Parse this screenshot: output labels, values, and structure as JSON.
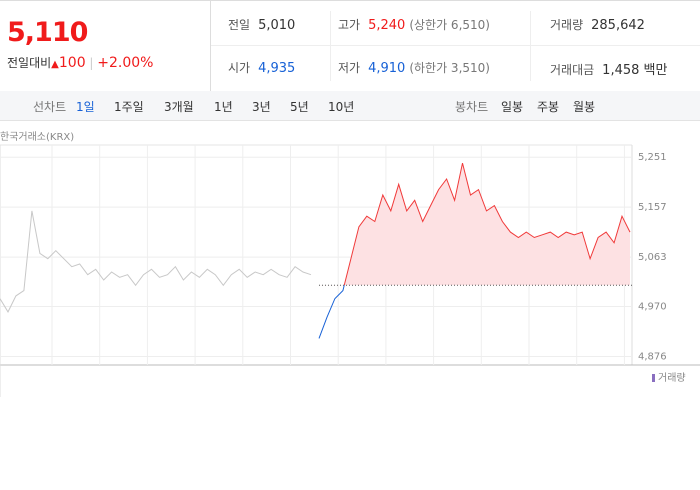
{
  "quote": {
    "price": "5,110",
    "change_label": "전일대비",
    "change": "100",
    "change_pct": "+2.00%",
    "items": [
      {
        "label": "전일",
        "value": "5,010"
      },
      {
        "label": "고가",
        "value": "5,240",
        "note": "(상한가 6,510)"
      },
      {
        "label": "거래량",
        "value": "285,642"
      },
      {
        "label": "시가",
        "value": "4,935"
      },
      {
        "label": "저가",
        "value": "4,910",
        "note": "(하한가 3,510)"
      },
      {
        "label": "거래대금",
        "value": "1,458 백만"
      }
    ]
  },
  "tabs": {
    "line_label": "선차트",
    "line": [
      "1일",
      "1주일",
      "3개월",
      "1년",
      "3년",
      "5년",
      "10년"
    ],
    "candle_label": "봉차트",
    "candle": [
      "일봉",
      "주봉",
      "월봉"
    ]
  },
  "chart_data": {
    "type": "line",
    "source": "한국거래소(KRX)",
    "volume_label": "거래량",
    "ylim": [
      4860,
      5274
    ],
    "yticks": [
      {
        "value": 4876,
        "label": "4,876"
      },
      {
        "value": 4970,
        "label": "4,970"
      },
      {
        "value": 5063,
        "label": "5,063"
      },
      {
        "value": 5157,
        "label": "5,157"
      },
      {
        "value": 5251,
        "label": "5,251"
      }
    ],
    "base": 5010,
    "up_color": "#f03a3a",
    "down_color": "#1761d6",
    "area_color": "#fde1e3",
    "grid": true,
    "series": [
      {
        "color": "#c8c8c8",
        "values": [
          4985,
          4960,
          4990,
          5000,
          5150,
          5070,
          5060,
          5075,
          5060,
          5045,
          5050,
          5030,
          5040,
          5020,
          5035,
          5025,
          5030,
          5010,
          5030,
          5040,
          5025,
          5030,
          5045,
          5020,
          5035,
          5025,
          5040,
          5030,
          5010,
          5030,
          5040,
          5025,
          5035,
          5030,
          5040,
          5030,
          5025,
          5045,
          5035,
          5030,
          null,
          null,
          null,
          null,
          null,
          null,
          null,
          null,
          null,
          null,
          null,
          null,
          null,
          null,
          null,
          null,
          null,
          null,
          null,
          null,
          null,
          null,
          null,
          null,
          null,
          null,
          null,
          null,
          null,
          null,
          null,
          null,
          null,
          null,
          null,
          null,
          null,
          null,
          null,
          null
        ]
      },
      {
        "color": "#f03a3a",
        "values": [
          null,
          null,
          null,
          null,
          null,
          null,
          null,
          null,
          null,
          null,
          null,
          null,
          null,
          null,
          null,
          null,
          null,
          null,
          null,
          null,
          null,
          null,
          null,
          null,
          null,
          null,
          null,
          null,
          null,
          null,
          null,
          null,
          null,
          null,
          null,
          null,
          null,
          null,
          null,
          null,
          4910,
          4950,
          4985,
          5000,
          5060,
          5120,
          5140,
          5130,
          5180,
          5150,
          5200,
          5150,
          5170,
          5130,
          5160,
          5190,
          5210,
          5170,
          5240,
          5180,
          5190,
          5150,
          5160,
          5130,
          5110,
          5100,
          5110,
          5100,
          5105,
          5110,
          5100,
          5110,
          5105,
          5110,
          5060,
          5100,
          5110,
          5090,
          5140,
          5110
        ]
      }
    ]
  }
}
